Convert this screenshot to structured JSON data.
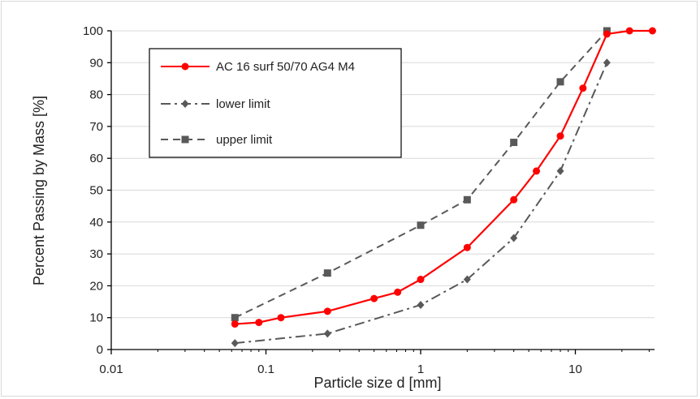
{
  "chart_data": {
    "type": "line",
    "xscale": "log",
    "xlim": [
      0.01,
      35
    ],
    "ylim": [
      0,
      100
    ],
    "xlabel": "Particle size d [mm]",
    "ylabel": "Percent Passing by Mass [%]",
    "xticks": [
      0.01,
      0.1,
      1,
      10
    ],
    "xtick_labels": [
      "0.01",
      "0.1",
      "1",
      "10"
    ],
    "yticks": [
      0,
      10,
      20,
      30,
      40,
      50,
      60,
      70,
      80,
      90,
      100
    ],
    "ytick_labels": [
      "0",
      "10",
      "20",
      "30",
      "40",
      "50",
      "60",
      "70",
      "80",
      "90",
      "100"
    ],
    "grid": "horizontal",
    "legend_position": "top-left",
    "series": [
      {
        "name": "AC 16 surf 50/70 AG4 M4",
        "color": "#ff0000",
        "line_style": "solid",
        "marker": "circle",
        "x": [
          0.063,
          0.09,
          0.125,
          0.25,
          0.5,
          0.71,
          1,
          2,
          4,
          5.6,
          8,
          11.2,
          16,
          22.4,
          31.5
        ],
        "y": [
          8,
          8.5,
          10,
          12,
          16,
          18,
          22,
          32,
          47,
          56,
          67,
          82,
          99,
          100,
          100
        ]
      },
      {
        "name": "lower limit",
        "color": "#595959",
        "line_style": "dashdot",
        "marker": "diamond",
        "x": [
          0.063,
          0.25,
          1,
          2,
          4,
          8,
          16
        ],
        "y": [
          2,
          5,
          14,
          22,
          35,
          56,
          90
        ]
      },
      {
        "name": "upper limit",
        "color": "#595959",
        "line_style": "dashed",
        "marker": "square",
        "x": [
          0.063,
          0.25,
          1,
          2,
          4,
          8,
          16
        ],
        "y": [
          10,
          24,
          39,
          47,
          65,
          84,
          100
        ]
      }
    ]
  }
}
